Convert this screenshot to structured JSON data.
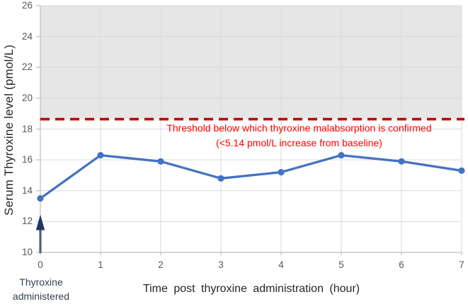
{
  "chart_data": {
    "type": "line",
    "title": "",
    "xlabel": "Time post thyroxine administration (hour)",
    "ylabel": "Serum Thyroxine level (pmol/L)",
    "x": [
      0,
      1,
      2,
      3,
      4,
      5,
      6,
      7
    ],
    "xticks": [
      "0",
      "1",
      "2",
      "3",
      "4",
      "5",
      "6",
      "7"
    ],
    "yticks": [
      "10",
      "12",
      "14",
      "16",
      "18",
      "20",
      "22",
      "24",
      "26"
    ],
    "xlim": [
      0,
      7
    ],
    "ylim": [
      10,
      26
    ],
    "grid": true,
    "legend": "none",
    "series": [
      {
        "name": "Serum thyroxine level",
        "values": [
          13.5,
          16.3,
          15.9,
          14.8,
          15.2,
          16.3,
          15.9,
          15.3
        ],
        "color": "#4472C4",
        "marker": "circle"
      }
    ],
    "threshold_line": {
      "value": 18.64,
      "style": "dashed",
      "color": "#C00000",
      "annotation": {
        "line1": "Threshold below which thyroxine malabsorption is confirmed",
        "line2": "(<5.14 pmol/L increase from baseline)",
        "color": "#FF0000"
      }
    },
    "shaded_region": {
      "from": 18.64,
      "to": 26,
      "color": "#E7E6E6"
    },
    "event_arrow": {
      "x": 0,
      "tip_value": 12.45,
      "label_line1": "Thyroxine",
      "label_line2": "administered",
      "head_color": "#1F3864",
      "tail_color": "#50607A",
      "text_color": "#333F50"
    }
  },
  "colors": {
    "grid": "#D9D9D9",
    "axis": "#BFBFBF",
    "tick_text": "#595959",
    "axis_title_text": "#262626",
    "background": "#FFFFFF"
  }
}
